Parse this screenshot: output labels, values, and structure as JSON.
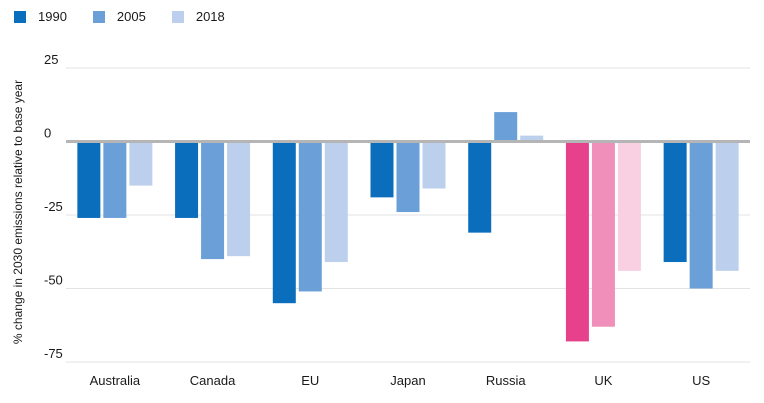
{
  "legend": [
    {
      "label": "1990",
      "color": "#0a6ebd"
    },
    {
      "label": "2005",
      "color": "#6a9fd8"
    },
    {
      "label": "2018",
      "color": "#bcd0ee"
    }
  ],
  "chart_data": {
    "type": "bar",
    "ylabel": "% change in 2030 emissions relative to base year",
    "ylim": [
      -75,
      25
    ],
    "yticks": [
      25,
      0,
      -25,
      -50,
      -75
    ],
    "yticklabels": [
      "25",
      "0",
      "-25",
      "-50",
      "-75"
    ],
    "categories": [
      "Australia",
      "Canada",
      "EU",
      "Japan",
      "Russia",
      "UK",
      "US"
    ],
    "series": [
      {
        "name": "1990",
        "values": [
          -26,
          -26,
          -55,
          -19,
          -31,
          -68,
          -41
        ]
      },
      {
        "name": "2005",
        "values": [
          -26,
          -40,
          -51,
          -24,
          10,
          -63,
          -50
        ]
      },
      {
        "name": "2018",
        "values": [
          -15,
          -39,
          -41,
          -16,
          2,
          -44,
          -44
        ]
      }
    ],
    "colors": {
      "default": [
        "#0a6ebd",
        "#6a9fd8",
        "#bcd0ee"
      ],
      "highlight_category": "UK",
      "highlight": [
        "#e8418c",
        "#f08fb9",
        "#f8d0e1"
      ]
    },
    "grid": true,
    "legend_position": "top-left"
  }
}
